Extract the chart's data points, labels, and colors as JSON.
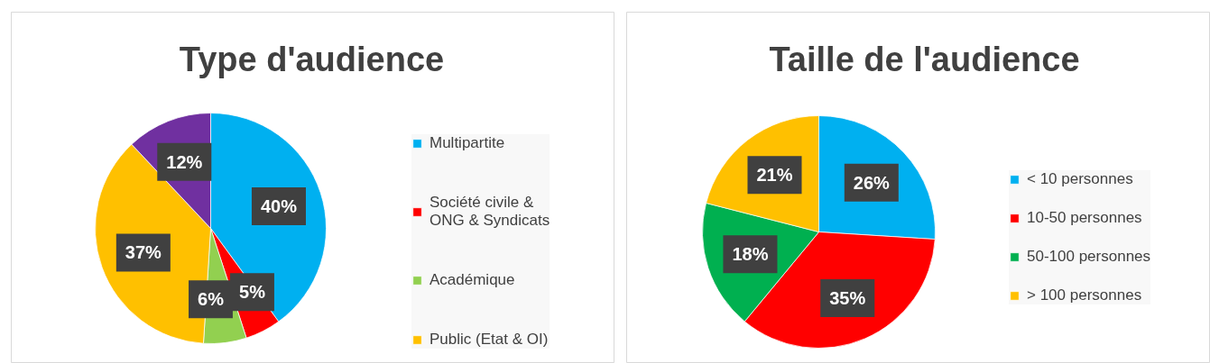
{
  "chart_data": [
    {
      "type": "pie",
      "title": "Type d'audience",
      "categories": [
        "Multipartite",
        "Société civile & ONG & Syndicats",
        "Académique",
        "Public (Etat & OI)",
        null
      ],
      "values": [
        40,
        5,
        6,
        37,
        12
      ],
      "colors": [
        "#00b0f0",
        "#ff0000",
        "#92d050",
        "#ffc000",
        "#7030a0"
      ],
      "value_labels": [
        "40%",
        "5%",
        "6%",
        "37%",
        "12%"
      ],
      "legend": "right"
    },
    {
      "type": "pie",
      "title": "Taille de l'audience",
      "categories": [
        "< 10 personnes",
        "10-50 personnes",
        "50-100 personnes",
        "> 100 personnes"
      ],
      "values": [
        26,
        35,
        18,
        21
      ],
      "colors": [
        "#00b0f0",
        "#ff0000",
        "#00b050",
        "#ffc000"
      ],
      "value_labels": [
        "26%",
        "35%",
        "18%",
        "21%"
      ],
      "legend": "right"
    }
  ]
}
